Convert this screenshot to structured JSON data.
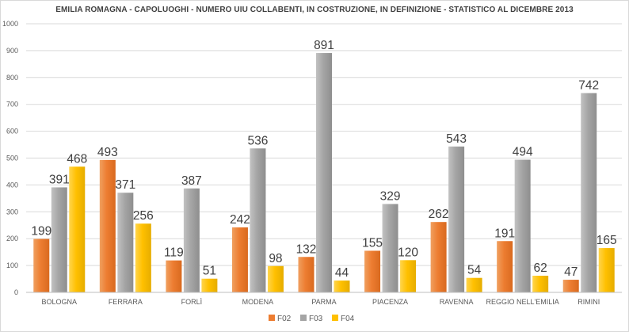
{
  "chart_data": {
    "type": "bar",
    "title": "EMILIA ROMAGNA - CAPOLUOGHI - NUMERO UIU COLLABENTI, IN COSTRUZIONE, IN DEFINIZIONE - STATISTICO AL DICEMBRE 2013",
    "xlabel": "",
    "ylabel": "",
    "ylim": [
      0,
      1000
    ],
    "yticks": [
      0,
      100,
      200,
      300,
      400,
      500,
      600,
      700,
      800,
      900,
      1000
    ],
    "grid": true,
    "legend": "bottom",
    "categories": [
      "BOLOGNA",
      "FERRARA",
      "FORLÌ",
      "MODENA",
      "PARMA",
      "PIACENZA",
      "RAVENNA",
      "REGGIO NELL'EMILIA",
      "RIMINI"
    ],
    "series": [
      {
        "name": "F02",
        "color": "#ed7d31",
        "values": [
          199,
          493,
          119,
          242,
          132,
          155,
          262,
          191,
          47
        ]
      },
      {
        "name": "F03",
        "color": "#a5a5a5",
        "values": [
          391,
          371,
          387,
          536,
          891,
          329,
          543,
          494,
          742
        ]
      },
      {
        "name": "F04",
        "color": "#ffc000",
        "values": [
          468,
          256,
          51,
          98,
          44,
          120,
          54,
          62,
          165
        ]
      }
    ]
  }
}
